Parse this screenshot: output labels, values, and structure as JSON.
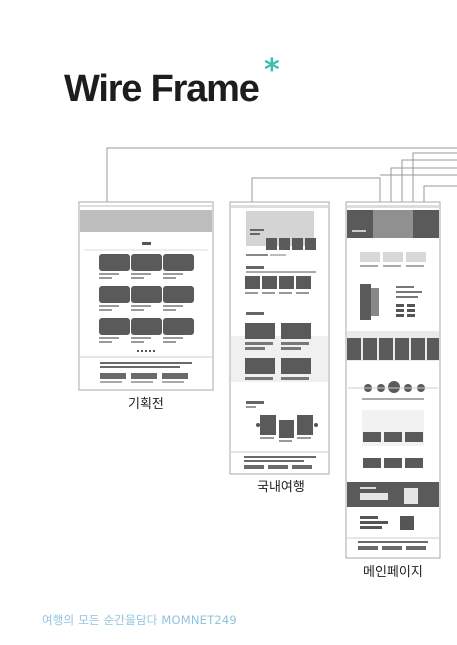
{
  "title": "Wire Frame",
  "accent_color": "#3dbfb1",
  "accent_symbol": "*",
  "pages": [
    {
      "label": "기획전"
    },
    {
      "label": "국내여행"
    },
    {
      "label": "메인페이지"
    }
  ],
  "footer": "여행의 모든 순간을담다 MOMNET249"
}
